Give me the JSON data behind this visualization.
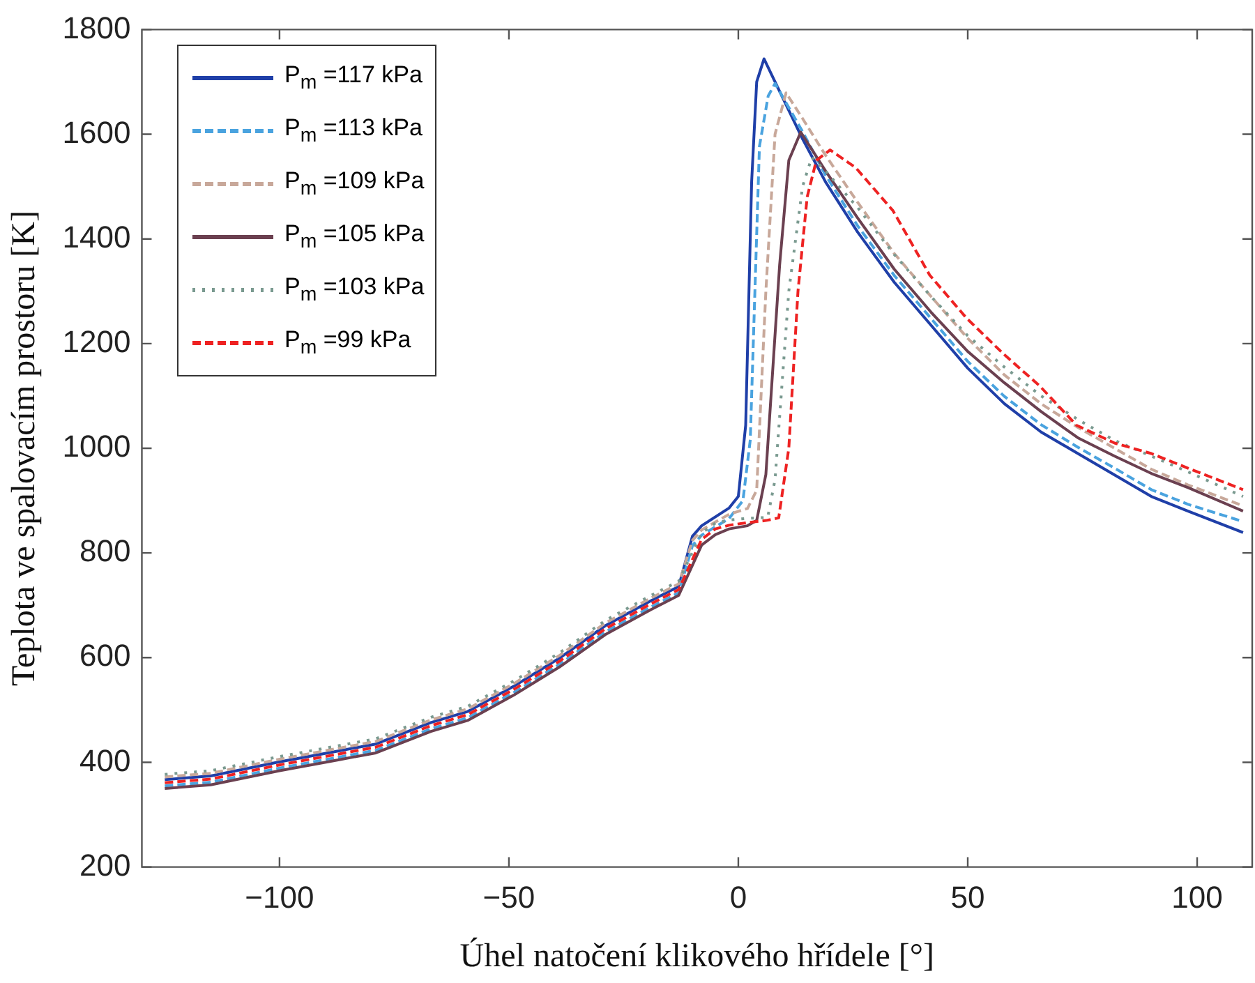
{
  "chart_data": {
    "type": "line",
    "xlabel": "Úhel natočení klikového hřídele [°]",
    "ylabel": "Teplota ve spalovacím prostoru [K]",
    "xlim": [
      -130,
      112
    ],
    "xticks": [
      -100,
      -50,
      0,
      50,
      100
    ],
    "ylim": [
      200,
      1800
    ],
    "yticks": [
      200,
      400,
      600,
      800,
      1000,
      1200,
      1400,
      1600,
      1800
    ],
    "legend": "top left",
    "series": [
      {
        "name": "P$_{m}$ =117 kPa",
        "color": "#1f3fa8",
        "line_style": "solid",
        "x": [
          -125,
          -115,
          -100,
          -87,
          -79,
          -67,
          -59,
          -49,
          -39,
          -29,
          -19,
          -13,
          -10,
          -8,
          -2,
          0,
          1.6,
          2.9,
          4,
          5.6,
          8,
          14,
          19,
          26,
          34,
          42,
          50,
          58,
          66,
          74,
          82,
          90,
          98,
          110
        ],
        "values": [
          367,
          374,
          401,
          422,
          435,
          476,
          497,
          545,
          599,
          661,
          709,
          736,
          832,
          852,
          886,
          908,
          1044,
          1509,
          1700,
          1744,
          1700,
          1591,
          1509,
          1413,
          1317,
          1235,
          1153,
          1085,
          1031,
          990,
          949,
          908,
          880,
          839
        ]
      },
      {
        "name": "P$_{m}$ =113 kPa",
        "color": "#4aa3df",
        "line_style": "dashed",
        "x": [
          -125,
          -115,
          -100,
          -87,
          -79,
          -67,
          -59,
          -49,
          -39,
          -29,
          -19,
          -13,
          -10,
          -8,
          -2,
          1,
          2.6,
          4.6,
          6.5,
          8,
          14,
          19,
          26,
          34,
          42,
          50,
          58,
          66,
          74,
          82,
          90,
          98,
          110
        ],
        "values": [
          355,
          362,
          389,
          410,
          423,
          464,
          485,
          533,
          587,
          649,
          697,
          724,
          814,
          834,
          866,
          900,
          1016,
          1577,
          1673,
          1697,
          1605,
          1522,
          1425,
          1330,
          1248,
          1166,
          1099,
          1045,
          1002,
          962,
          921,
          893,
          860
        ]
      },
      {
        "name": "P$_{m}$ =109 kPa",
        "color": "#c8a89a",
        "line_style": "dashed",
        "x": [
          -125,
          -115,
          -100,
          -87,
          -79,
          -67,
          -59,
          -49,
          -39,
          -29,
          -19,
          -13,
          -10,
          -8,
          -2,
          2,
          4,
          6,
          8,
          10.4,
          14,
          19,
          26,
          34,
          42,
          50,
          58,
          66,
          74,
          82,
          90,
          98,
          110
        ],
        "values": [
          372,
          379,
          406,
          427,
          440,
          481,
          502,
          550,
          604,
          666,
          714,
          741,
          824,
          844,
          874,
          885,
          920,
          1300,
          1600,
          1679,
          1630,
          1560,
          1470,
          1372,
          1290,
          1210,
          1140,
          1085,
          1040,
          1000,
          960,
          930,
          890
        ]
      },
      {
        "name": "P$_{m}$ =105 kPa",
        "color": "#6b4050",
        "line_style": "solid",
        "x": [
          -125,
          -115,
          -100,
          -87,
          -79,
          -67,
          -59,
          -49,
          -39,
          -29,
          -19,
          -13,
          -8,
          -5,
          -2,
          2,
          4,
          6,
          9,
          11,
          13.6,
          19,
          26,
          34,
          42,
          50,
          58,
          66,
          74,
          82,
          90,
          98,
          110
        ],
        "values": [
          350,
          357,
          384,
          405,
          418,
          459,
          480,
          528,
          582,
          644,
          692,
          719,
          815,
          835,
          846,
          852,
          862,
          950,
          1350,
          1550,
          1604,
          1530,
          1440,
          1342,
          1260,
          1185,
          1125,
          1070,
          1020,
          985,
          952,
          925,
          880
        ]
      },
      {
        "name": "P$_{m}$ =103 kPa",
        "color": "#7a9a90",
        "line_style": "dotted",
        "x": [
          -125,
          -115,
          -100,
          -87,
          -79,
          -67,
          -59,
          -49,
          -39,
          -29,
          -19,
          -13,
          -8,
          -5,
          -2,
          2,
          6.4,
          8,
          11,
          14,
          16,
          19,
          26,
          34,
          42,
          50,
          58,
          66,
          74,
          82,
          90,
          98,
          110
        ],
        "values": [
          377,
          384,
          411,
          432,
          445,
          486,
          507,
          555,
          609,
          671,
          719,
          746,
          838,
          857,
          863,
          866,
          868,
          940,
          1300,
          1500,
          1556,
          1530,
          1460,
          1370,
          1290,
          1215,
          1155,
          1100,
          1055,
          1015,
          985,
          955,
          908
        ]
      },
      {
        "name": "P$_{m}$ =99 kPa",
        "color": "#ee2222",
        "line_style": "dashed",
        "x": [
          -125,
          -115,
          -100,
          -87,
          -79,
          -67,
          -59,
          -49,
          -39,
          -29,
          -19,
          -13,
          -8,
          -5,
          -2,
          2,
          6,
          8.8,
          11,
          13,
          15,
          17,
          20,
          25.6,
          33.7,
          41.7,
          49.7,
          57.7,
          65.7,
          73.7,
          82,
          90,
          98,
          110
        ],
        "values": [
          361,
          368,
          395,
          416,
          429,
          470,
          491,
          539,
          593,
          655,
          703,
          730,
          826,
          846,
          853,
          858,
          862,
          867,
          1000,
          1300,
          1480,
          1550,
          1570,
          1536,
          1454,
          1331,
          1249,
          1181,
          1119,
          1044,
          1010,
          990,
          962,
          921
        ]
      }
    ]
  }
}
